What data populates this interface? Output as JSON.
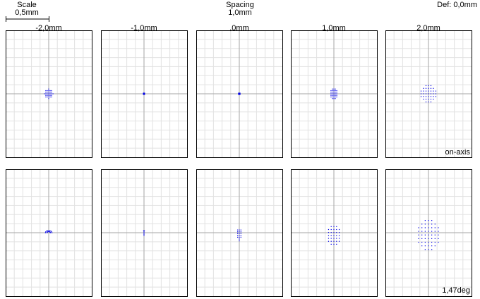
{
  "header": {
    "scale_title": "Scale",
    "scale_value": "0,5mm",
    "spacing_title": "Spacing",
    "spacing_value": "1,0mm",
    "defocus": "Def: 0,0mm"
  },
  "chart_data": {
    "type": "scatter",
    "title": "",
    "grid": true,
    "scale_bar": "0,5mm",
    "focus_positions": [
      "-2,0mm",
      "-1,0mm",
      ",0mm",
      "1,0mm",
      "2,0mm"
    ],
    "fields": [
      "on-axis",
      "1,47deg"
    ],
    "plot_range_mm": {
      "x": [
        -1.05,
        1.05
      ],
      "y": [
        -1.4,
        1.4
      ]
    },
    "spots": [
      [
        {
          "pattern": "disc",
          "radius_x": 0.11,
          "radius_y": 0.11,
          "offset_y": 0.0,
          "step": 0.035
        },
        {
          "pattern": "point",
          "radius_x": 0.025,
          "radius_y": 0.025,
          "offset_y": 0.0,
          "step": 0.02
        },
        {
          "pattern": "point",
          "radius_x": 0.03,
          "radius_y": 0.025,
          "offset_y": 0.0,
          "step": 0.02
        },
        {
          "pattern": "disc",
          "radius_x": 0.1,
          "radius_y": 0.12,
          "offset_y": 0.0,
          "step": 0.035
        },
        {
          "pattern": "disc",
          "radius_x": 0.19,
          "radius_y": 0.2,
          "offset_y": 0.0,
          "step": 0.06
        }
      ],
      [
        {
          "pattern": "fan",
          "radius_x": 0.08,
          "radius_y": 0.05,
          "offset_y": 0.0,
          "step": 0.03
        },
        {
          "pattern": "line",
          "radius_x": 0.01,
          "radius_y": 0.05,
          "offset_y": -0.01,
          "step": 0.025
        },
        {
          "pattern": "teardrop",
          "radius_x": 0.085,
          "radius_y": 0.14,
          "offset_y": -0.06,
          "step": 0.04
        },
        {
          "pattern": "disc",
          "radius_x": 0.17,
          "radius_y": 0.25,
          "offset_y": -0.06,
          "step": 0.065
        },
        {
          "pattern": "disc",
          "radius_x": 0.27,
          "radius_y": 0.36,
          "offset_y": -0.05,
          "step": 0.08
        }
      ]
    ]
  },
  "colors": {
    "spot": "#0000e6",
    "grid": "#e2e2e2",
    "axis": "#a6a6a6",
    "frame": "#000000"
  }
}
